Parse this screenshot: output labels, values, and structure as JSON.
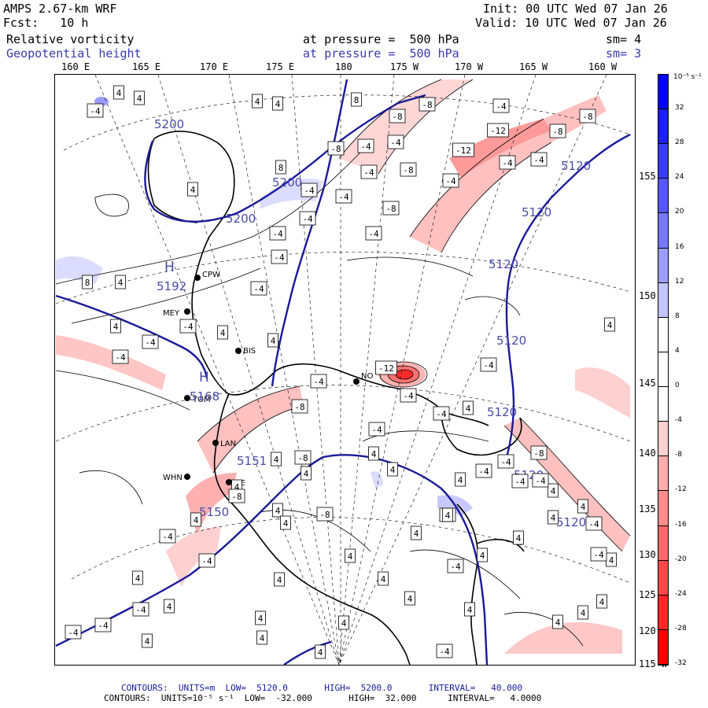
{
  "header": {
    "model": "AMPS 2.67-km WRF",
    "forecast": "Fcst:   10 h",
    "init": "Init: 00 UTC Wed 07 Jan 26",
    "valid": "Valid: 10 UTC Wed 07 Jan 26",
    "field1_name": "Relative vorticity",
    "field1_level": "at pressure =  500 hPa",
    "field1_smooth": "sm= 4",
    "field2_name": "Geopotential height",
    "field2_level": "at pressure =  500 hPa",
    "field2_smooth": "sm= 3"
  },
  "lon_labels": [
    "160 E",
    "165 E",
    "170 E",
    "175 E",
    "180",
    "175 W",
    "170 W",
    "165 W",
    "160 W"
  ],
  "lat_labels": [
    "155 W",
    "150 W",
    "145 W",
    "140 W",
    "135 W",
    "130 W",
    "125 W",
    "120 W",
    "115 W"
  ],
  "colorbar": {
    "units": "10⁻⁵ s⁻¹",
    "ticks": [
      "32",
      "28",
      "24",
      "20",
      "16",
      "12",
      "8",
      "4",
      "0",
      "-4",
      "-8",
      "-12",
      "-16",
      "-20",
      "-24",
      "-28",
      "-32"
    ],
    "colors": [
      "#0000ff",
      "#1e1eff",
      "#3a3aff",
      "#5656ff",
      "#7878ff",
      "#9c9cff",
      "#c4c4ff",
      "#ffffff",
      "#ffffff",
      "#ffffff",
      "#ffd0d0",
      "#ffacac",
      "#ff8c8c",
      "#ff6a6a",
      "#ff4848",
      "#ff2626",
      "#ff0000"
    ]
  },
  "stations": [
    "CPW",
    "MEY",
    "BIS",
    "TOM",
    "LAN",
    "WHN",
    "SE",
    "NO"
  ],
  "height_labels": [
    "5200",
    "5200",
    "5200",
    "5192",
    "5168",
    "5151",
    "5150",
    "5120",
    "5120",
    "5120",
    "5120",
    "5120",
    "5120",
    "5120"
  ],
  "vort_labels": [
    "4",
    "4",
    "-4",
    "4",
    "4",
    "8",
    "-8",
    "-8",
    "-4",
    "-12",
    "-12",
    "-8",
    "-8",
    "-4",
    "-4",
    "8",
    "-8",
    "-4",
    "-4",
    "-8",
    "-4",
    "-4",
    "-4",
    "-4",
    "-8",
    "-4",
    "-4",
    "-4",
    "4",
    "-4",
    "-4",
    "8",
    "4",
    "4",
    "-4",
    "4",
    "-4",
    "-4",
    "4",
    "4",
    "-12",
    "-4",
    "-4",
    "-4",
    "-4",
    "-8",
    "4",
    "-4",
    "-8",
    "4",
    "-8",
    "-8",
    "-4",
    "-4",
    "4",
    "4",
    "4",
    "4",
    "4",
    "-4",
    "4",
    "-4",
    "4",
    "4",
    "4",
    "4",
    "4",
    "-4",
    "4",
    "4",
    "4",
    "4",
    "4",
    "-4",
    "4",
    "4",
    "4",
    "4",
    "-4",
    "-4",
    "-4",
    "4",
    "4",
    "4",
    "-4",
    "4",
    "4",
    "4",
    "4",
    "4",
    "4",
    "4",
    "-8",
    "-4",
    "-8",
    "-4",
    "-4",
    "4"
  ],
  "footer": {
    "line1": "CONTOURS:  UNITS=m  LOW=  5120.0       HIGH=  5200.0       INTERVAL=   40.000",
    "line2": "CONTOURS:  UNITS=10⁻⁵ s⁻¹  LOW=  -32.000       HIGH=  32.000      INTERVAL=   4.0000"
  }
}
